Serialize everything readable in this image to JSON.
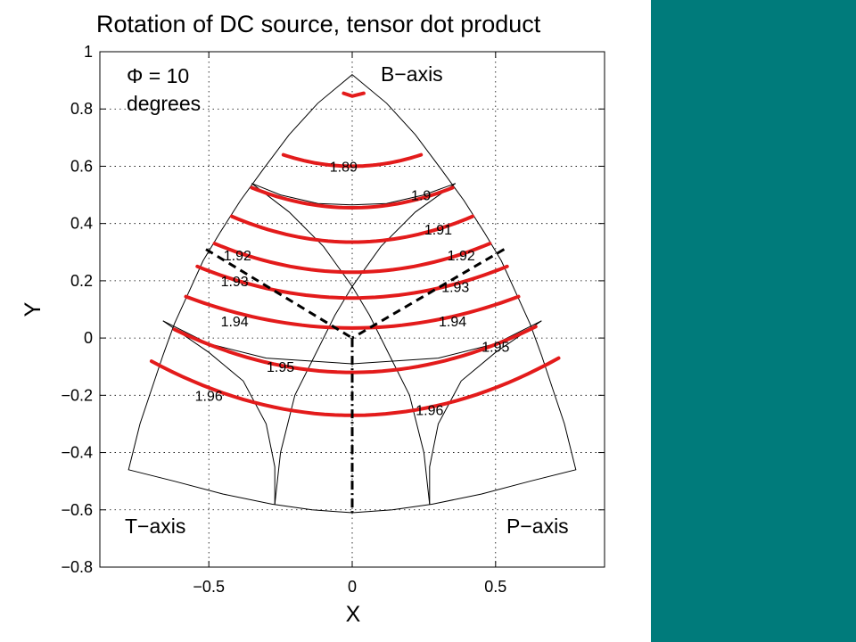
{
  "theme": {
    "side_panel_color": "#007b7b",
    "contour_color": "#e31b1b",
    "boundary_color": "#000000"
  },
  "chart_data": {
    "type": "contour",
    "title": "Rotation of DC source, tensor dot product",
    "xlabel": "X",
    "ylabel": "Y",
    "xlim": [
      -0.88,
      0.88
    ],
    "ylim": [
      -0.8,
      1.0
    ],
    "xticks": [
      -0.5,
      0,
      0.5
    ],
    "xtick_labels": [
      "−0.5",
      "0",
      "0.5"
    ],
    "yticks": [
      -0.8,
      -0.6,
      -0.4,
      -0.2,
      0,
      0.2,
      0.4,
      0.6,
      0.8,
      1
    ],
    "ytick_labels": [
      "−0.8",
      "−0.6",
      "−0.4",
      "−0.2",
      "0",
      "0.2",
      "0.4",
      "0.6",
      "0.8",
      "1"
    ],
    "grid": true,
    "annotations": {
      "phi_line1": "Φ = 10",
      "phi_line2": "degrees",
      "b_axis": "B−axis",
      "t_axis": "T−axis",
      "p_axis": "P−axis"
    },
    "contours": [
      {
        "level": "1.89",
        "x_span": [
          -0.24,
          0.24
        ],
        "y_mid": 0.6,
        "sag": 0.04,
        "labels": [
          {
            "x": -0.03,
            "y": 0.6
          }
        ]
      },
      {
        "level": "1.9",
        "x_span": [
          -0.35,
          0.35
        ],
        "y_mid": 0.455,
        "sag": 0.07,
        "labels": [
          {
            "x": 0.24,
            "y": 0.5
          }
        ]
      },
      {
        "level": "1.91",
        "x_span": [
          -0.42,
          0.42
        ],
        "y_mid": 0.335,
        "sag": 0.09,
        "labels": [
          {
            "x": 0.3,
            "y": 0.38
          }
        ]
      },
      {
        "level": "1.92",
        "x_span": [
          -0.48,
          0.48
        ],
        "y_mid": 0.23,
        "sag": 0.1,
        "labels": [
          {
            "x": -0.4,
            "y": 0.29
          },
          {
            "x": 0.38,
            "y": 0.29
          }
        ]
      },
      {
        "level": "1.93",
        "x_span": [
          -0.54,
          0.54
        ],
        "y_mid": 0.14,
        "sag": 0.11,
        "labels": [
          {
            "x": -0.41,
            "y": 0.2
          },
          {
            "x": 0.36,
            "y": 0.18
          }
        ]
      },
      {
        "level": "1.94",
        "x_span": [
          -0.58,
          0.58
        ],
        "y_mid": 0.035,
        "sag": 0.11,
        "labels": [
          {
            "x": -0.41,
            "y": 0.06
          },
          {
            "x": 0.35,
            "y": 0.06
          }
        ]
      },
      {
        "level": "1.95",
        "x_span": [
          -0.62,
          0.64
        ],
        "y_mid": -0.12,
        "sag": 0.16,
        "labels": [
          {
            "x": -0.25,
            "y": -0.1
          },
          {
            "x": 0.5,
            "y": -0.03
          }
        ]
      },
      {
        "level": "1.96",
        "x_span": [
          -0.7,
          0.72
        ],
        "y_mid": -0.27,
        "sag": 0.2,
        "labels": [
          {
            "x": -0.5,
            "y": -0.2
          },
          {
            "x": 0.27,
            "y": -0.25
          }
        ]
      }
    ]
  }
}
